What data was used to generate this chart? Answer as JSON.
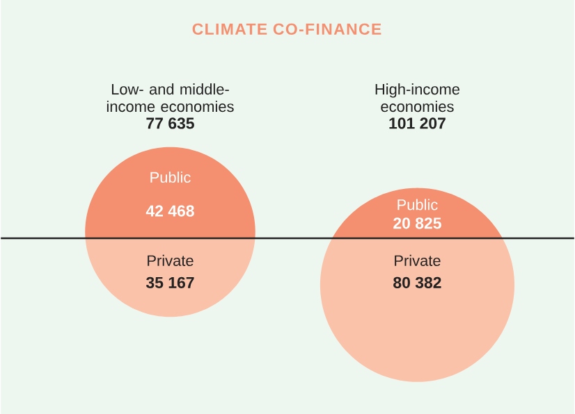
{
  "chart_data": {
    "type": "other",
    "title": "CLIMATE CO-FINANCE",
    "categories": [
      "Low- and middle-income economies",
      "High-income economies"
    ],
    "totals": [
      "77 635",
      "101 207"
    ],
    "series": [
      {
        "name": "Public",
        "color": "#f48f6f",
        "values": [
          42468,
          20825
        ],
        "value_labels": [
          "42 468",
          "20 825"
        ]
      },
      {
        "name": "Private",
        "color": "#fbc2aa",
        "values": [
          35167,
          80382
        ],
        "value_labels": [
          "35 167",
          "80 382"
        ]
      }
    ]
  }
}
